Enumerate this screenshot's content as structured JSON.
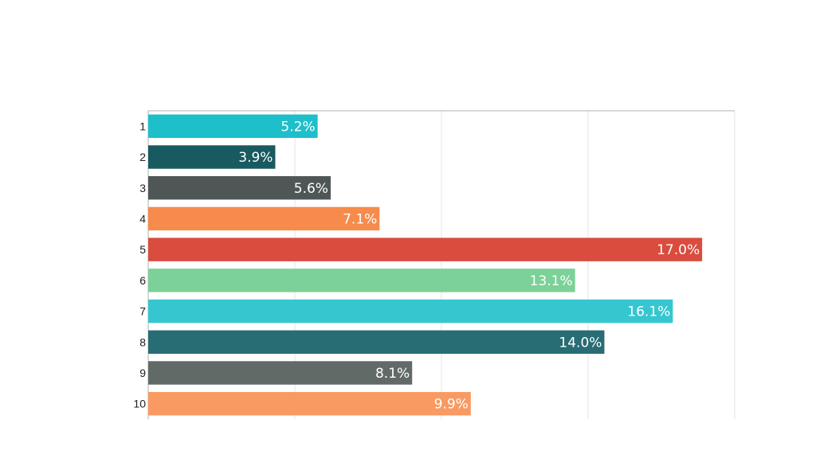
{
  "chart_data": {
    "type": "bar",
    "orientation": "horizontal",
    "title": "",
    "xlabel": "",
    "ylabel": "",
    "categories": [
      "1",
      "2",
      "3",
      "4",
      "5",
      "6",
      "7",
      "8",
      "9",
      "10"
    ],
    "values": [
      5.2,
      3.9,
      5.6,
      7.1,
      17.0,
      13.1,
      16.1,
      14.0,
      8.1,
      9.9
    ],
    "data_labels": [
      "5.2%",
      "3.9%",
      "5.6%",
      "7.1%",
      "17.0%",
      "13.1%",
      "16.1%",
      "14.0%",
      "8.1%",
      "9.9%"
    ],
    "colors": [
      "#1dbfca",
      "#185a60",
      "#4e5756",
      "#f68b4c",
      "#d94c3e",
      "#7bd197",
      "#35c6d0",
      "#286c74",
      "#626a68",
      "#f89a62"
    ],
    "xlim": [
      0,
      18
    ],
    "x_gridlines": [
      0,
      4.5,
      9,
      13.5,
      18
    ],
    "x_tick_labels_shown": false,
    "grid": true,
    "legend": "none",
    "value_unit": "%"
  }
}
